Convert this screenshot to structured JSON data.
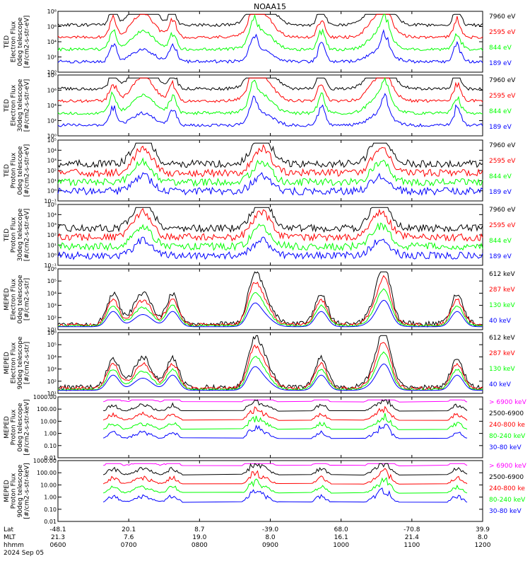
{
  "colors": {
    "blue": "#0000ff",
    "red": "#ff0000",
    "green": "#00ff00",
    "black": "#000000",
    "magenta": "#ff00ff"
  },
  "chart_data": {
    "title": "NOAA15",
    "type": "line",
    "x_axis": {
      "row_labels": [
        "Lat",
        "MLT",
        "hhmm",
        "2024 Sep 05"
      ],
      "ticks": [
        {
          "lat": "-48.1",
          "mlt": "21.3",
          "time": "0600"
        },
        {
          "lat": "20.1",
          "mlt": "7.6",
          "time": "0700"
        },
        {
          "lat": "8.7",
          "mlt": "19.0",
          "time": "0800"
        },
        {
          "lat": "-39.0",
          "mlt": "8.0",
          "time": "0900"
        },
        {
          "lat": "68.0",
          "mlt": "16.1",
          "time": "1000"
        },
        {
          "lat": "-70.8",
          "mlt": "21.4",
          "time": "1100"
        },
        {
          "lat": "39.9",
          "mlt": "8.0",
          "time": "1200"
        }
      ]
    },
    "panels": [
      {
        "ylabel": [
          "TED",
          "Electron Flux",
          "0deg telescope",
          "[#/cm2-s-str-eV]"
        ],
        "yticks": [
          "10⁰",
          "10²",
          "10⁴",
          "10⁶",
          "10⁸"
        ],
        "ylim_exp": [
          0,
          8
        ],
        "series": [
          {
            "name": "7960 eV",
            "color": "black"
          },
          {
            "name": "2595 eV",
            "color": "red"
          },
          {
            "name": "844 eV",
            "color": "green"
          },
          {
            "name": "189 eV",
            "color": "blue"
          }
        ]
      },
      {
        "ylabel": [
          "TED",
          "Electron Flux",
          "30deg telescope",
          "[#/cm2-s-str-eV]"
        ],
        "yticks": [
          "10⁰",
          "10²",
          "10⁴",
          "10⁶",
          "10⁸"
        ],
        "ylim_exp": [
          0,
          8
        ],
        "series": [
          {
            "name": "7960 eV",
            "color": "black"
          },
          {
            "name": "2595 eV",
            "color": "red"
          },
          {
            "name": "844 eV",
            "color": "green"
          },
          {
            "name": "189 eV",
            "color": "blue"
          }
        ]
      },
      {
        "ylabel": [
          "TED",
          "Proton Flux",
          "0deg telescope",
          "[#/cm2-s-str-eV]"
        ],
        "yticks": [
          "10⁻¹",
          "10⁰",
          "10¹",
          "10²",
          "10³",
          "10⁴",
          "10⁵"
        ],
        "ylim_exp": [
          -1,
          5
        ],
        "series": [
          {
            "name": "7960 eV",
            "color": "black"
          },
          {
            "name": "2595 eV",
            "color": "red"
          },
          {
            "name": "844 eV",
            "color": "green"
          },
          {
            "name": "189 eV",
            "color": "blue"
          }
        ]
      },
      {
        "ylabel": [
          "TED",
          "Proton Flux",
          "30deg telescope",
          "[#/cm2-s-str-eV]"
        ],
        "yticks": [
          "10⁻¹",
          "10⁰",
          "10¹",
          "10²",
          "10³",
          "10⁴",
          "10⁵"
        ],
        "ylim_exp": [
          -1,
          5
        ],
        "series": [
          {
            "name": "7960 eV",
            "color": "black"
          },
          {
            "name": "2595 eV",
            "color": "red"
          },
          {
            "name": "844 eV",
            "color": "green"
          },
          {
            "name": "189 eV",
            "color": "blue"
          }
        ]
      },
      {
        "ylabel": [
          "MEPED",
          "Electron Flux",
          "0deg telescope",
          "[#/cm2-s-str]"
        ],
        "yticks": [
          "10¹",
          "10²",
          "10³",
          "10⁴",
          "10⁵",
          "10⁶"
        ],
        "ylim_exp": [
          1,
          6
        ],
        "series": [
          {
            "name": "612 keV",
            "color": "black"
          },
          {
            "name": "287 keV",
            "color": "red"
          },
          {
            "name": "130 keV",
            "color": "green"
          },
          {
            "name": "40 keV",
            "color": "blue"
          }
        ]
      },
      {
        "ylabel": [
          "MEPED",
          "Electron Flux",
          "90deg telescope",
          "[#/cm2-s-str]"
        ],
        "yticks": [
          "10¹",
          "10²",
          "10³",
          "10⁴",
          "10⁵",
          "10⁶"
        ],
        "ylim_exp": [
          1,
          6
        ],
        "series": [
          {
            "name": "612 keV",
            "color": "black"
          },
          {
            "name": "287 keV",
            "color": "red"
          },
          {
            "name": "130 keV",
            "color": "green"
          },
          {
            "name": "40 keV",
            "color": "blue"
          }
        ]
      },
      {
        "ylabel": [
          "MEPED",
          "Proton Flux",
          "0deg telescope",
          "[#/cm2-s-str-keV]"
        ],
        "yticks": [
          "0.01",
          "0.10",
          "1.00",
          "10.00",
          "100.00",
          "1000.00"
        ],
        "ylim_exp": [
          -2,
          3
        ],
        "series": [
          {
            "name": "> 6900 keV",
            "color": "magenta"
          },
          {
            "name": "2500-6900",
            "color": "black"
          },
          {
            "name": "240-800 ke",
            "color": "red"
          },
          {
            "name": "80-240 keV",
            "color": "green"
          },
          {
            "name": "30-80 keV",
            "color": "blue"
          }
        ]
      },
      {
        "ylabel": [
          "MEPED",
          "Proton Flux",
          "90deg telescope",
          "[#/cm2-s-str-keV]"
        ],
        "yticks": [
          "0.01",
          "0.10",
          "1.00",
          "10.00",
          "100.00",
          "1000.00"
        ],
        "ylim_exp": [
          -2,
          3
        ],
        "series": [
          {
            "name": "> 6900 keV",
            "color": "magenta"
          },
          {
            "name": "2500-6900",
            "color": "black"
          },
          {
            "name": "240-800 ke",
            "color": "red"
          },
          {
            "name": "80-240 keV",
            "color": "green"
          },
          {
            "name": "30-80 keV",
            "color": "blue"
          }
        ]
      }
    ]
  }
}
